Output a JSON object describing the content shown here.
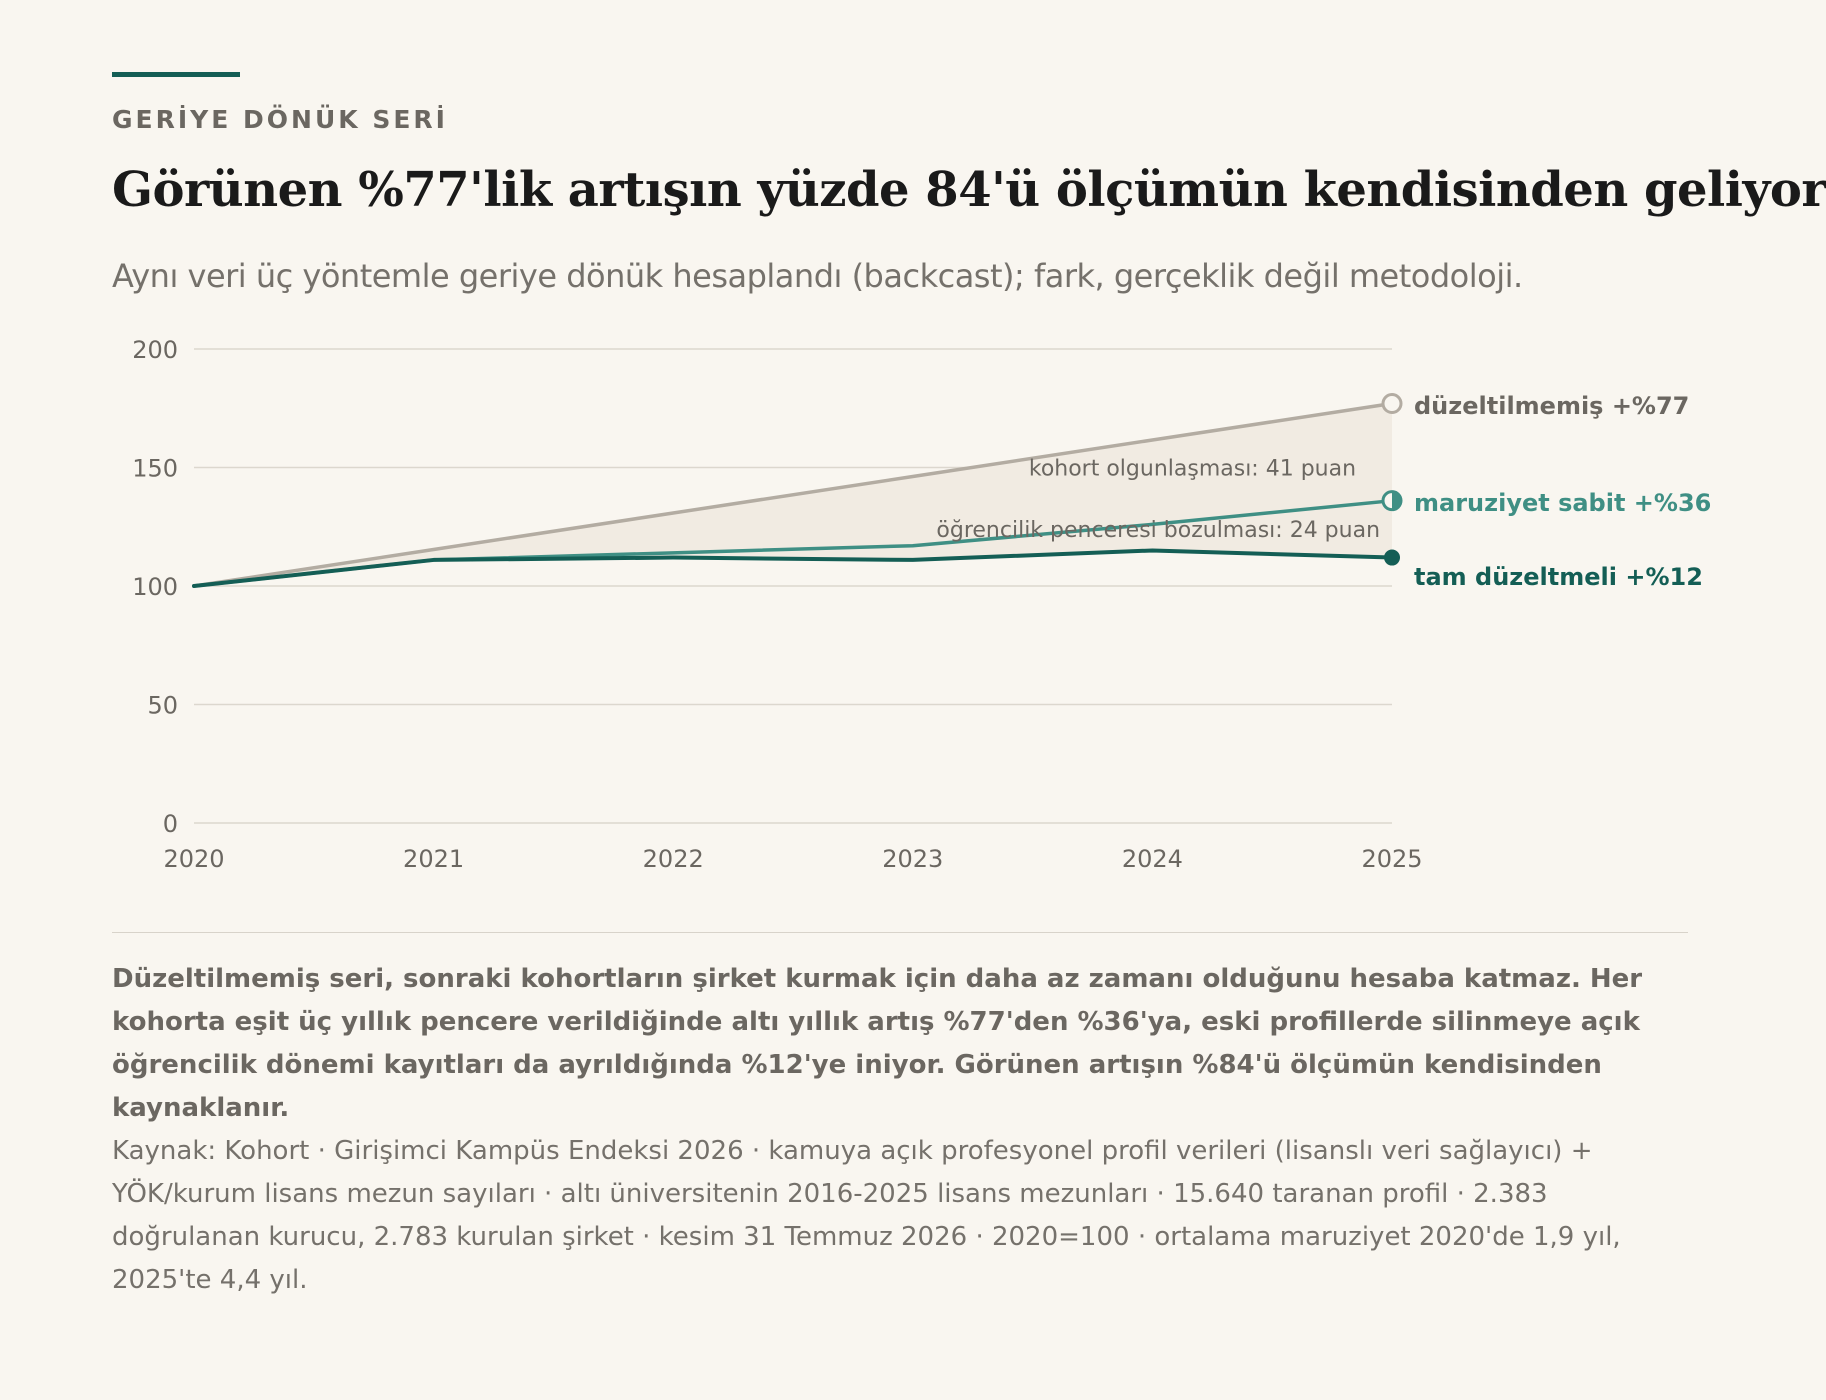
{
  "header": {
    "eyebrow": "GERİYE DÖNÜK SERİ",
    "title": "Görünen %77'lik artışın yüzde 84'ü ölçümün kendisinden geliyor",
    "subtitle": "Aynı veri üç yöntemle geriye dönük hesaplandı (backcast); fark, gerçeklik değil metodoloji."
  },
  "chart_data": {
    "type": "line",
    "x": [
      2020,
      2021,
      2022,
      2023,
      2024,
      2025
    ],
    "xlim": [
      2020,
      2025
    ],
    "ylim": [
      0,
      200
    ],
    "y_ticks": [
      0,
      50,
      100,
      150,
      200
    ],
    "x_ticks": [
      "2020",
      "2021",
      "2022",
      "2023",
      "2024",
      "2025"
    ],
    "grid": true,
    "series": [
      {
        "name": "düzeltilmemiş",
        "end_label": "düzeltilmemiş +%77",
        "values": [
          100,
          115.4,
          130.8,
          146.2,
          161.6,
          177
        ],
        "color": "#b3aca2",
        "marker": "open"
      },
      {
        "name": "maruziyet sabit",
        "end_label": "maruziyet sabit +%36",
        "values": [
          100,
          111,
          114,
          117,
          126,
          136
        ],
        "color": "#3f8f84",
        "marker": "half"
      },
      {
        "name": "tam düzeltmeli",
        "end_label": "tam düzeltmeli +%12",
        "values": [
          100,
          111,
          112,
          111,
          115,
          112
        ],
        "color": "#145e55",
        "marker": "filled"
      }
    ],
    "shaded_band": {
      "between": [
        "düzeltilmemiş",
        "tam düzeltmeli"
      ],
      "color": "#f1ebe2"
    },
    "annotations": [
      {
        "text": "kohort olgunlaşması: 41 puan",
        "x": 2024.85,
        "y": 150
      },
      {
        "text": "öğrencilik penceresi bozulması: 24 puan",
        "x": 2024.95,
        "y": 124
      }
    ]
  },
  "footer": {
    "note_bold": "Düzeltilmemiş seri, sonraki kohortların şirket kurmak için daha az zamanı olduğunu hesaba katmaz. Her kohorta eşit üç yıllık pencere verildiğinde altı yıllık artış %77'den %36'ya, eski profillerde silinmeye açık öğrencilik dönemi kayıtları da ayrıldığında %12'ye iniyor. Görünen artışın %84'ü ölçümün kendisinden kaynaklanır.",
    "source": "Kaynak: Kohort · Girişimci Kampüs Endeksi 2026 · kamuya açık profesyonel profil verileri (lisanslı veri sağlayıcı) + YÖK/kurum lisans mezun sayıları · altı üniversitenin 2016-2025 lisans mezunları · 15.640 taranan profil · 2.383 doğrulanan kurucu, 2.783 kurulan şirket · kesim 31 Temmuz 2026 · 2020=100 · ortalama maruziyet 2020'de 1,9 yıl, 2025'te 4,4 yıl."
  }
}
